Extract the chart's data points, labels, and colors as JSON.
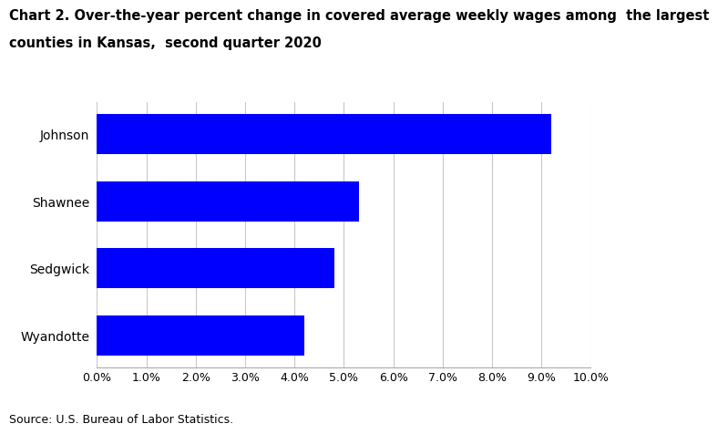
{
  "title_line1": "Chart 2. Over-the-year percent change in covered average weekly wages among  the largest",
  "title_line2": "counties in Kansas,  second quarter 2020",
  "categories": [
    "Wyandotte",
    "Sedgwick",
    "Shawnee",
    "Johnson"
  ],
  "values": [
    0.042,
    0.048,
    0.053,
    0.092
  ],
  "bar_color": "#0000FF",
  "xlim": [
    0.0,
    0.1
  ],
  "xticks": [
    0.0,
    0.01,
    0.02,
    0.03,
    0.04,
    0.05,
    0.06,
    0.07,
    0.08,
    0.09,
    0.1
  ],
  "xtick_labels": [
    "0.0%",
    "1.0%",
    "2.0%",
    "3.0%",
    "4.0%",
    "5.0%",
    "6.0%",
    "7.0%",
    "8.0%",
    "9.0%",
    "10.0%"
  ],
  "source": "Source: U.S. Bureau of Labor Statistics.",
  "background_color": "#FFFFFF",
  "grid_color": "#C8C8C8",
  "title_fontsize": 10.5,
  "label_fontsize": 10,
  "tick_fontsize": 9,
  "source_fontsize": 9
}
